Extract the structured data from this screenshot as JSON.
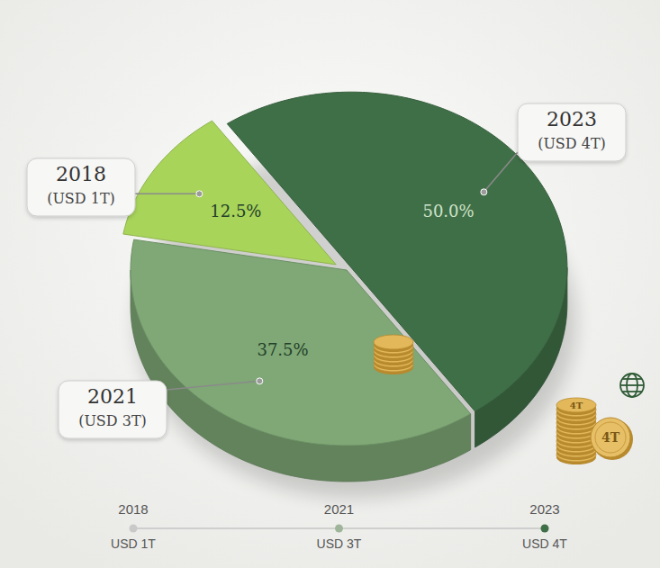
{
  "chart_data": {
    "type": "pie",
    "categories": [
      "2018",
      "2021",
      "2023"
    ],
    "values": [
      12.5,
      37.5,
      50.0
    ],
    "value_labels": [
      "12.5%",
      "37.5%",
      "50.0%"
    ],
    "data_labels": true,
    "colors": [
      "#a8d45a",
      "#7fa876",
      "#3f6f47"
    ],
    "callout_labels": [
      "(USD 1T)",
      "(USD 3T)",
      "(USD 4T)"
    ],
    "timeline_labels": [
      "USD 1T",
      "USD 3T",
      "USD 4T"
    ],
    "annotations": [
      "4T",
      "4T"
    ]
  }
}
